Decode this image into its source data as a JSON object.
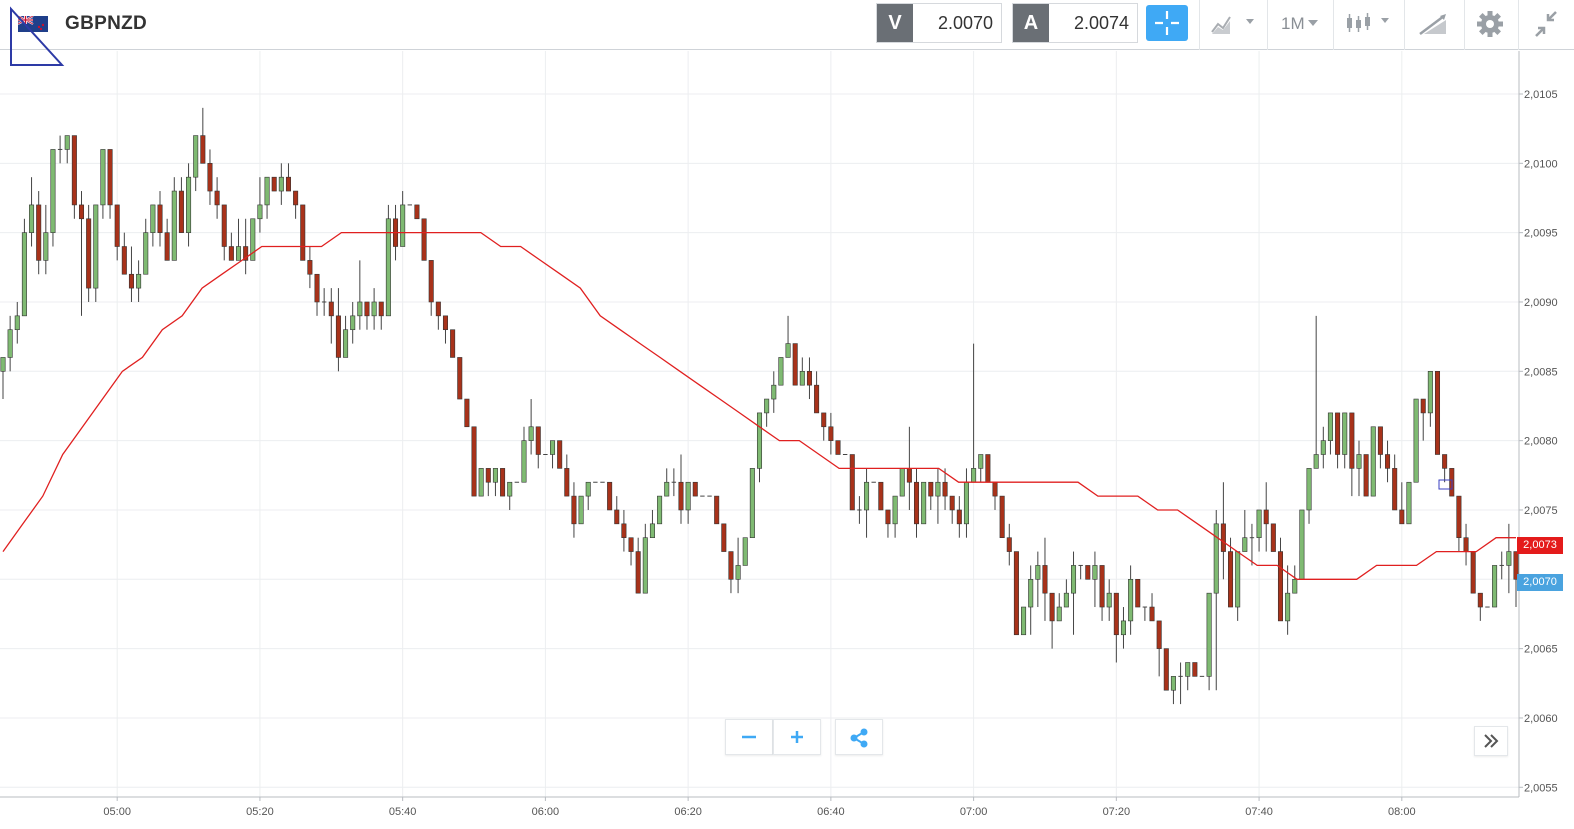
{
  "toolbar": {
    "symbol": "GBPNZD",
    "sell_label": "V",
    "sell_price": "2.0070",
    "buy_label": "A",
    "buy_price": "2.0074",
    "timeframe": "1M",
    "icons": [
      "gbp-nzd-flag-icon",
      "crosshair-icon",
      "chart-type-icon",
      "timeframe-dropdown-icon",
      "indicators-icon",
      "drawing-tools-icon",
      "settings-icon",
      "collapse-icon"
    ]
  },
  "price_tags": {
    "moving_average": "2,0073",
    "last_price": "2,0070"
  },
  "controls": {
    "zoom_out_icon": "minus-icon",
    "zoom_in_icon": "plus-icon",
    "share_icon": "share-icon",
    "scroll_end_icon": "double-chevron-right-icon"
  },
  "colors": {
    "bull": "#7fba72",
    "bear": "#a8321a",
    "ma_line": "#e02020",
    "accent": "#3fa9f5"
  },
  "chart_data": {
    "type": "candlestick",
    "instrument": "GBPNZD",
    "interval": "1M",
    "y_tick_labels": [
      "2,0055",
      "2,0060",
      "2,0065",
      "2,0070",
      "2,0075",
      "2,0080",
      "2,0085",
      "2,0090",
      "2,0095",
      "2,0100",
      "2,0105"
    ],
    "ylim": [
      2.00543,
      2.01081
    ],
    "x_tick_labels": [
      "05:00",
      "05:20",
      "05:40",
      "06:00",
      "06:20",
      "06:40",
      "07:00",
      "07:20",
      "07:40",
      "08:00"
    ],
    "grid": true,
    "candles_ohlc": [
      [
        2.0085,
        2.0086,
        2.0083,
        2.0086
      ],
      [
        2.0086,
        2.0089,
        2.0085,
        2.0088
      ],
      [
        2.0088,
        2.009,
        2.0087,
        2.0089
      ],
      [
        2.0089,
        2.0096,
        2.0089,
        2.0095
      ],
      [
        2.0095,
        2.0099,
        2.0094,
        2.0097
      ],
      [
        2.0097,
        2.0098,
        2.0092,
        2.0093
      ],
      [
        2.0093,
        2.0097,
        2.0092,
        2.0095
      ],
      [
        2.0095,
        2.0101,
        2.0094,
        2.0101
      ],
      [
        2.0101,
        2.0102,
        2.01,
        2.0101
      ],
      [
        2.0101,
        2.0102,
        2.01,
        2.0102
      ],
      [
        2.0102,
        2.0102,
        2.0096,
        2.0097
      ],
      [
        2.0097,
        2.0098,
        2.0089,
        2.0096
      ],
      [
        2.0096,
        2.0097,
        2.009,
        2.0091
      ],
      [
        2.0091,
        2.0097,
        2.009,
        2.0097
      ],
      [
        2.0097,
        2.0101,
        2.0096,
        2.0101
      ],
      [
        2.0101,
        2.0101,
        2.0096,
        2.0097
      ],
      [
        2.0097,
        2.0097,
        2.0093,
        2.0094
      ],
      [
        2.0094,
        2.0095,
        2.0092,
        2.0092
      ],
      [
        2.0092,
        2.0094,
        2.009,
        2.0091
      ],
      [
        2.0091,
        2.0093,
        2.009,
        2.0092
      ],
      [
        2.0092,
        2.0096,
        2.0092,
        2.0095
      ],
      [
        2.0095,
        2.0097,
        2.0094,
        2.0097
      ],
      [
        2.0097,
        2.0098,
        2.0094,
        2.0095
      ],
      [
        2.0095,
        2.0096,
        2.0093,
        2.0093
      ],
      [
        2.0093,
        2.0099,
        2.0093,
        2.0098
      ],
      [
        2.0098,
        2.0099,
        2.0095,
        2.0095
      ],
      [
        2.0095,
        2.01,
        2.0094,
        2.0099
      ],
      [
        2.0099,
        2.0102,
        2.0098,
        2.0102
      ],
      [
        2.0102,
        2.0104,
        2.01,
        2.01
      ],
      [
        2.01,
        2.0101,
        2.0097,
        2.0098
      ],
      [
        2.0098,
        2.0099,
        2.0096,
        2.0097
      ],
      [
        2.0097,
        2.0097,
        2.0093,
        2.0094
      ],
      [
        2.0094,
        2.0095,
        2.0093,
        2.0093
      ],
      [
        2.0093,
        2.0096,
        2.0093,
        2.0094
      ],
      [
        2.0094,
        2.0096,
        2.0092,
        2.0093
      ],
      [
        2.0093,
        2.0096,
        2.0093,
        2.0096
      ],
      [
        2.0096,
        2.0099,
        2.0095,
        2.0097
      ],
      [
        2.0097,
        2.0099,
        2.0096,
        2.0099
      ],
      [
        2.0099,
        2.0099,
        2.0098,
        2.0098
      ],
      [
        2.0098,
        2.01,
        2.0097,
        2.0099
      ],
      [
        2.0099,
        2.01,
        2.0098,
        2.0098
      ],
      [
        2.0098,
        2.0098,
        2.0096,
        2.0097
      ],
      [
        2.0097,
        2.0097,
        2.0093,
        2.0093
      ],
      [
        2.0093,
        2.0094,
        2.0091,
        2.0092
      ],
      [
        2.0092,
        2.0092,
        2.0089,
        2.009
      ],
      [
        2.009,
        2.0091,
        2.0089,
        2.009
      ],
      [
        2.009,
        2.0091,
        2.0087,
        2.0089
      ],
      [
        2.0089,
        2.0091,
        2.0085,
        2.0086
      ],
      [
        2.0086,
        2.0089,
        2.0087,
        2.0088
      ],
      [
        2.0088,
        2.009,
        2.0087,
        2.0089
      ],
      [
        2.0089,
        2.0093,
        2.0088,
        2.009
      ],
      [
        2.009,
        2.009,
        2.0088,
        2.0089
      ],
      [
        2.0089,
        2.0091,
        2.0088,
        2.009
      ],
      [
        2.009,
        2.009,
        2.0088,
        2.0089
      ],
      [
        2.0089,
        2.0097,
        2.0089,
        2.0096
      ],
      [
        2.0096,
        2.0097,
        2.0093,
        2.0094
      ],
      [
        2.0094,
        2.0098,
        2.0094,
        2.0097
      ],
      [
        2.0097,
        2.0097,
        2.0097,
        2.0097
      ],
      [
        2.0097,
        2.0097,
        2.0096,
        2.0096
      ],
      [
        2.0096,
        2.0096,
        2.0093,
        2.0093
      ],
      [
        2.0093,
        2.0093,
        2.0089,
        2.009
      ],
      [
        2.009,
        2.009,
        2.0088,
        2.0089
      ],
      [
        2.0089,
        2.0089,
        2.0087,
        2.0088
      ],
      [
        2.0088,
        2.0088,
        2.0086,
        2.0086
      ],
      [
        2.0086,
        2.0086,
        2.0083,
        2.0083
      ],
      [
        2.0083,
        2.0083,
        2.0081,
        2.0081
      ],
      [
        2.0081,
        2.0081,
        2.0076,
        2.0076
      ],
      [
        2.0076,
        2.0078,
        2.0076,
        2.0078
      ],
      [
        2.0078,
        2.0078,
        2.0076,
        2.0077
      ],
      [
        2.0077,
        2.0078,
        2.0076,
        2.0078
      ],
      [
        2.0078,
        2.0078,
        2.0076,
        2.0076
      ],
      [
        2.0076,
        2.0077,
        2.0075,
        2.0077
      ],
      [
        2.0077,
        2.0077,
        2.0077,
        2.0077
      ],
      [
        2.0077,
        2.0081,
        2.0077,
        2.008
      ],
      [
        2.008,
        2.0083,
        2.0079,
        2.0081
      ],
      [
        2.0081,
        2.0081,
        2.0078,
        2.0079
      ],
      [
        2.0079,
        2.0079,
        2.0079,
        2.0079
      ],
      [
        2.0079,
        2.008,
        2.0078,
        2.008
      ],
      [
        2.008,
        2.008,
        2.0078,
        2.0078
      ],
      [
        2.0078,
        2.0079,
        2.0076,
        2.0076
      ],
      [
        2.0076,
        2.0077,
        2.0073,
        2.0074
      ],
      [
        2.0074,
        2.0076,
        2.0074,
        2.0076
      ],
      [
        2.0076,
        2.0077,
        2.0075,
        2.0077
      ],
      [
        2.0077,
        2.0077,
        2.0077,
        2.0077
      ],
      [
        2.0077,
        2.0077,
        2.0077,
        2.0077
      ],
      [
        2.0077,
        2.0077,
        2.0075,
        2.0075
      ],
      [
        2.0075,
        2.0076,
        2.0074,
        2.0074
      ],
      [
        2.0074,
        2.0075,
        2.0072,
        2.0073
      ],
      [
        2.0073,
        2.0073,
        2.0071,
        2.0072
      ],
      [
        2.0072,
        2.0073,
        2.0069,
        2.0069
      ],
      [
        2.0069,
        2.0074,
        2.0069,
        2.0073
      ],
      [
        2.0073,
        2.0075,
        2.0073,
        2.0074
      ],
      [
        2.0074,
        2.0076,
        2.0074,
        2.0076
      ],
      [
        2.0076,
        2.0078,
        2.0076,
        2.0077
      ],
      [
        2.0077,
        2.0078,
        2.0076,
        2.0077
      ],
      [
        2.0077,
        2.0079,
        2.0074,
        2.0075
      ],
      [
        2.0075,
        2.0077,
        2.0074,
        2.0077
      ],
      [
        2.0077,
        2.0077,
        2.0076,
        2.0076
      ],
      [
        2.0076,
        2.0076,
        2.0076,
        2.0076
      ],
      [
        2.0076,
        2.0076,
        2.0076,
        2.0076
      ],
      [
        2.0076,
        2.0076,
        2.0074,
        2.0074
      ],
      [
        2.0074,
        2.0074,
        2.0072,
        2.0072
      ],
      [
        2.0072,
        2.0072,
        2.0069,
        2.007
      ],
      [
        2.007,
        2.0073,
        2.0069,
        2.0071
      ],
      [
        2.0071,
        2.0073,
        2.0071,
        2.0073
      ],
      [
        2.0073,
        2.0078,
        2.0073,
        2.0078
      ],
      [
        2.0078,
        2.0082,
        2.0077,
        2.0082
      ],
      [
        2.0082,
        2.0083,
        2.0081,
        2.0083
      ],
      [
        2.0083,
        2.0085,
        2.0082,
        2.0084
      ],
      [
        2.0084,
        2.0086,
        2.0084,
        2.0086
      ],
      [
        2.0086,
        2.0089,
        2.0086,
        2.0087
      ],
      [
        2.0087,
        2.0087,
        2.0084,
        2.0084
      ],
      [
        2.0084,
        2.0086,
        2.0084,
        2.0085
      ],
      [
        2.0085,
        2.0086,
        2.0083,
        2.0084
      ],
      [
        2.0084,
        2.0085,
        2.0082,
        2.0082
      ],
      [
        2.0082,
        2.0082,
        2.008,
        2.0081
      ],
      [
        2.0081,
        2.0082,
        2.0079,
        2.008
      ],
      [
        2.008,
        2.008,
        2.0079,
        2.0079
      ],
      [
        2.0079,
        2.0079,
        2.0079,
        2.0079
      ],
      [
        2.0079,
        2.0079,
        2.0075,
        2.0075
      ],
      [
        2.0075,
        2.0076,
        2.0074,
        2.0075
      ],
      [
        2.0075,
        2.0078,
        2.0073,
        2.0077
      ],
      [
        2.0077,
        2.0077,
        2.0077,
        2.0077
      ],
      [
        2.0077,
        2.0077,
        2.0075,
        2.0075
      ],
      [
        2.0075,
        2.0075,
        2.0073,
        2.0074
      ],
      [
        2.0074,
        2.0076,
        2.0073,
        2.0076
      ],
      [
        2.0076,
        2.0078,
        2.0076,
        2.0078
      ],
      [
        2.0078,
        2.0081,
        2.0075,
        2.0077
      ],
      [
        2.0077,
        2.0078,
        2.0073,
        2.0074
      ],
      [
        2.0074,
        2.0077,
        2.0074,
        2.0077
      ],
      [
        2.0077,
        2.0077,
        2.0075,
        2.0076
      ],
      [
        2.0076,
        2.0078,
        2.0074,
        2.0077
      ],
      [
        2.0077,
        2.0078,
        2.0075,
        2.0076
      ],
      [
        2.0076,
        2.0076,
        2.0074,
        2.0075
      ],
      [
        2.0075,
        2.0076,
        2.0073,
        2.0074
      ],
      [
        2.0074,
        2.0078,
        2.0073,
        2.0077
      ],
      [
        2.0077,
        2.0087,
        2.0077,
        2.0078
      ],
      [
        2.0078,
        2.0079,
        2.0077,
        2.0079
      ],
      [
        2.0079,
        2.0079,
        2.0077,
        2.0077
      ],
      [
        2.0077,
        2.0077,
        2.0075,
        2.0076
      ],
      [
        2.0076,
        2.0076,
        2.0073,
        2.0073
      ],
      [
        2.0073,
        2.0074,
        2.0071,
        2.0072
      ],
      [
        2.0072,
        2.0072,
        2.0066,
        2.0066
      ],
      [
        2.0066,
        2.0068,
        2.0066,
        2.0068
      ],
      [
        2.0068,
        2.0071,
        2.0066,
        2.007
      ],
      [
        2.007,
        2.0072,
        2.0068,
        2.0071
      ],
      [
        2.0071,
        2.0073,
        2.0067,
        2.0069
      ],
      [
        2.0069,
        2.0069,
        2.0065,
        2.0067
      ],
      [
        2.0067,
        2.0069,
        2.0067,
        2.0068
      ],
      [
        2.0068,
        2.007,
        2.0068,
        2.0069
      ],
      [
        2.0069,
        2.0072,
        2.0066,
        2.0071
      ],
      [
        2.0071,
        2.0071,
        2.007,
        2.0071
      ],
      [
        2.0071,
        2.0071,
        2.007,
        2.007
      ],
      [
        2.007,
        2.0072,
        2.0068,
        2.0071
      ],
      [
        2.0071,
        2.0071,
        2.0067,
        2.0068
      ],
      [
        2.0068,
        2.007,
        2.0067,
        2.0069
      ],
      [
        2.0069,
        2.0069,
        2.0064,
        2.0066
      ],
      [
        2.0066,
        2.0068,
        2.0065,
        2.0067
      ],
      [
        2.0067,
        2.0071,
        2.0066,
        2.007
      ],
      [
        2.007,
        2.007,
        2.0068,
        2.0068
      ],
      [
        2.0068,
        2.0068,
        2.0067,
        2.0068
      ],
      [
        2.0068,
        2.0069,
        2.0067,
        2.0067
      ],
      [
        2.0067,
        2.0067,
        2.0063,
        2.0065
      ],
      [
        2.0065,
        2.0065,
        2.0062,
        2.0062
      ],
      [
        2.0062,
        2.0063,
        2.0061,
        2.0063
      ],
      [
        2.0063,
        2.0064,
        2.0061,
        2.0063
      ],
      [
        2.0063,
        2.0064,
        2.0062,
        2.0064
      ],
      [
        2.0064,
        2.0064,
        2.0063,
        2.0063
      ],
      [
        2.0063,
        2.0063,
        2.0063,
        2.0063
      ],
      [
        2.0063,
        2.0069,
        2.0062,
        2.0069
      ],
      [
        2.0069,
        2.0075,
        2.0062,
        2.0074
      ],
      [
        2.0074,
        2.0077,
        2.007,
        2.0072
      ],
      [
        2.0072,
        2.0073,
        2.0068,
        2.0068
      ],
      [
        2.0068,
        2.0072,
        2.0067,
        2.0072
      ],
      [
        2.0072,
        2.0075,
        2.0072,
        2.0073
      ],
      [
        2.0073,
        2.0074,
        2.0071,
        2.0073
      ],
      [
        2.0073,
        2.0075,
        2.0072,
        2.0075
      ],
      [
        2.0075,
        2.0077,
        2.0072,
        2.0074
      ],
      [
        2.0074,
        2.0074,
        2.0072,
        2.0072
      ],
      [
        2.0072,
        2.0073,
        2.0067,
        2.0067
      ],
      [
        2.0067,
        2.0071,
        2.0066,
        2.0069
      ],
      [
        2.0069,
        2.0071,
        2.0069,
        2.007
      ],
      [
        2.007,
        2.0075,
        2.007,
        2.0075
      ],
      [
        2.0075,
        2.0078,
        2.0074,
        2.0078
      ],
      [
        2.0078,
        2.0089,
        2.0078,
        2.0079
      ],
      [
        2.0079,
        2.0081,
        2.0078,
        2.008
      ],
      [
        2.008,
        2.0082,
        2.0079,
        2.0082
      ],
      [
        2.0082,
        2.0082,
        2.0078,
        2.0079
      ],
      [
        2.0079,
        2.0082,
        2.0078,
        2.0082
      ],
      [
        2.0082,
        2.0082,
        2.0076,
        2.0078
      ],
      [
        2.0078,
        2.008,
        2.0076,
        2.0079
      ],
      [
        2.0079,
        2.0079,
        2.0076,
        2.0076
      ],
      [
        2.0076,
        2.0081,
        2.0076,
        2.0081
      ],
      [
        2.0081,
        2.0081,
        2.0078,
        2.0079
      ],
      [
        2.0079,
        2.008,
        2.0077,
        2.0078
      ],
      [
        2.0078,
        2.0079,
        2.0075,
        2.0075
      ],
      [
        2.0075,
        2.0077,
        2.0074,
        2.0074
      ],
      [
        2.0074,
        2.0077,
        2.0074,
        2.0077
      ],
      [
        2.0077,
        2.0083,
        2.0077,
        2.0083
      ],
      [
        2.0083,
        2.0083,
        2.008,
        2.0082
      ],
      [
        2.0082,
        2.0085,
        2.0081,
        2.0085
      ],
      [
        2.0085,
        2.0085,
        2.0079,
        2.0079
      ],
      [
        2.0079,
        2.0079,
        2.0077,
        2.0078
      ],
      [
        2.0078,
        2.0078,
        2.0076,
        2.0076
      ],
      [
        2.0076,
        2.0076,
        2.0072,
        2.0073
      ],
      [
        2.0073,
        2.0074,
        2.0071,
        2.0072
      ],
      [
        2.0072,
        2.0072,
        2.0069,
        2.0069
      ],
      [
        2.0069,
        2.0069,
        2.0067,
        2.0068
      ],
      [
        2.0068,
        2.0068,
        2.0068,
        2.0068
      ],
      [
        2.0068,
        2.0071,
        2.0068,
        2.0071
      ],
      [
        2.0071,
        2.0072,
        2.007,
        2.0071
      ],
      [
        2.0071,
        2.0074,
        2.0069,
        2.0072
      ],
      [
        2.0072,
        2.0072,
        2.0068,
        2.007
      ]
    ],
    "moving_average": [
      2.0072,
      2.0074,
      2.0076,
      2.0079,
      2.0081,
      2.0083,
      2.0085,
      2.0086,
      2.0088,
      2.0089,
      2.0091,
      2.0092,
      2.0093,
      2.0094,
      2.0094,
      2.0094,
      2.0094,
      2.0095,
      2.0095,
      2.0095,
      2.0095,
      2.0095,
      2.0095,
      2.0095,
      2.0095,
      2.0094,
      2.0094,
      2.0093,
      2.0092,
      2.0091,
      2.0089,
      2.0088,
      2.0087,
      2.0086,
      2.0085,
      2.0084,
      2.0083,
      2.0082,
      2.0081,
      2.008,
      2.008,
      2.0079,
      2.0078,
      2.0078,
      2.0078,
      2.0078,
      2.0078,
      2.0078,
      2.0077,
      2.0077,
      2.0077,
      2.0077,
      2.0077,
      2.0077,
      2.0077,
      2.0076,
      2.0076,
      2.0076,
      2.0075,
      2.0075,
      2.0074,
      2.0073,
      2.0072,
      2.0071,
      2.0071,
      2.007,
      2.007,
      2.007,
      2.007,
      2.0071,
      2.0071,
      2.0071,
      2.0072,
      2.0072,
      2.0072,
      2.0073,
      2.0073
    ]
  }
}
